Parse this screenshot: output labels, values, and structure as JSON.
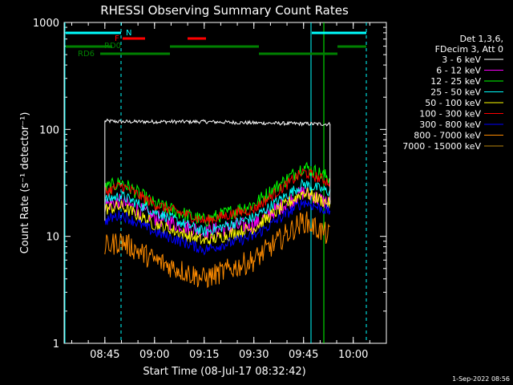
{
  "chart_data": {
    "type": "line",
    "title": "RHESSI Observing Summary Count Rates",
    "xlabel": "Start Time (08-Jul-17 08:32:42)",
    "ylabel": "Count Rate (s⁻¹ detector⁻¹)",
    "yscale": "log",
    "ylim": [
      1,
      1000
    ],
    "xlim": [
      "08:32:42",
      "10:10:00"
    ],
    "x_ticks": [
      "08:45",
      "09:00",
      "09:15",
      "09:30",
      "09:45",
      "10:00"
    ],
    "y_ticks": [
      "1",
      "10",
      "100",
      "1000"
    ],
    "legend_header": [
      "Det 1,3,6,",
      "FDecim 3, Att 0"
    ],
    "legend_position": "right",
    "series": [
      {
        "name": "3 - 6 keV",
        "color": "#ffffff",
        "t": [
          "08:45",
          "08:50",
          "09:00",
          "09:15",
          "09:30",
          "09:45",
          "09:53"
        ],
        "values": [
          120,
          118,
          118,
          118,
          115,
          113,
          112
        ]
      },
      {
        "name": "6 - 12 keV",
        "color": "#ff00ff",
        "t": [
          "08:45",
          "08:50",
          "09:00",
          "09:15",
          "09:30",
          "09:45",
          "09:53"
        ],
        "values": [
          20,
          21,
          15,
          11,
          13,
          26,
          20
        ]
      },
      {
        "name": "12 - 25 keV",
        "color": "#00ff00",
        "t": [
          "08:45",
          "08:50",
          "09:00",
          "09:15",
          "09:30",
          "09:45",
          "09:53"
        ],
        "values": [
          28,
          32,
          20,
          14,
          20,
          45,
          35
        ]
      },
      {
        "name": "25 - 50 keV",
        "color": "#00ffff",
        "t": [
          "08:45",
          "08:50",
          "09:00",
          "09:15",
          "09:30",
          "09:45",
          "09:53"
        ],
        "values": [
          22,
          24,
          17,
          11,
          15,
          31,
          26
        ]
      },
      {
        "name": "50 - 100 keV",
        "color": "#ffff00",
        "t": [
          "08:45",
          "08:50",
          "09:00",
          "09:15",
          "09:30",
          "09:45",
          "09:53"
        ],
        "values": [
          18,
          19,
          13,
          9,
          12,
          26,
          20
        ]
      },
      {
        "name": "100 - 300 keV",
        "color": "#ff0000",
        "t": [
          "08:45",
          "08:50",
          "09:00",
          "09:15",
          "09:30",
          "09:45",
          "09:53"
        ],
        "values": [
          26,
          30,
          20,
          14,
          18,
          40,
          32
        ]
      },
      {
        "name": "300 - 800 keV",
        "color": "#0000ff",
        "t": [
          "08:45",
          "08:50",
          "09:00",
          "09:15",
          "09:30",
          "09:45",
          "09:53"
        ],
        "values": [
          14,
          16,
          11,
          7.5,
          10,
          21,
          17
        ]
      },
      {
        "name": "800 - 7000 keV",
        "color": "#ff8c00",
        "t": [
          "08:45",
          "08:50",
          "09:00",
          "09:15",
          "09:30",
          "09:45",
          "09:53"
        ],
        "values": [
          8,
          9,
          6,
          4,
          6,
          14,
          10
        ]
      },
      {
        "name": "7000 - 15000 keV",
        "color": "#b8860b",
        "t": [],
        "values": []
      }
    ],
    "flag_labels": [
      "N",
      "F",
      "RD0",
      "RD6"
    ],
    "datestamp": "1-Sep-2022 08:56"
  }
}
